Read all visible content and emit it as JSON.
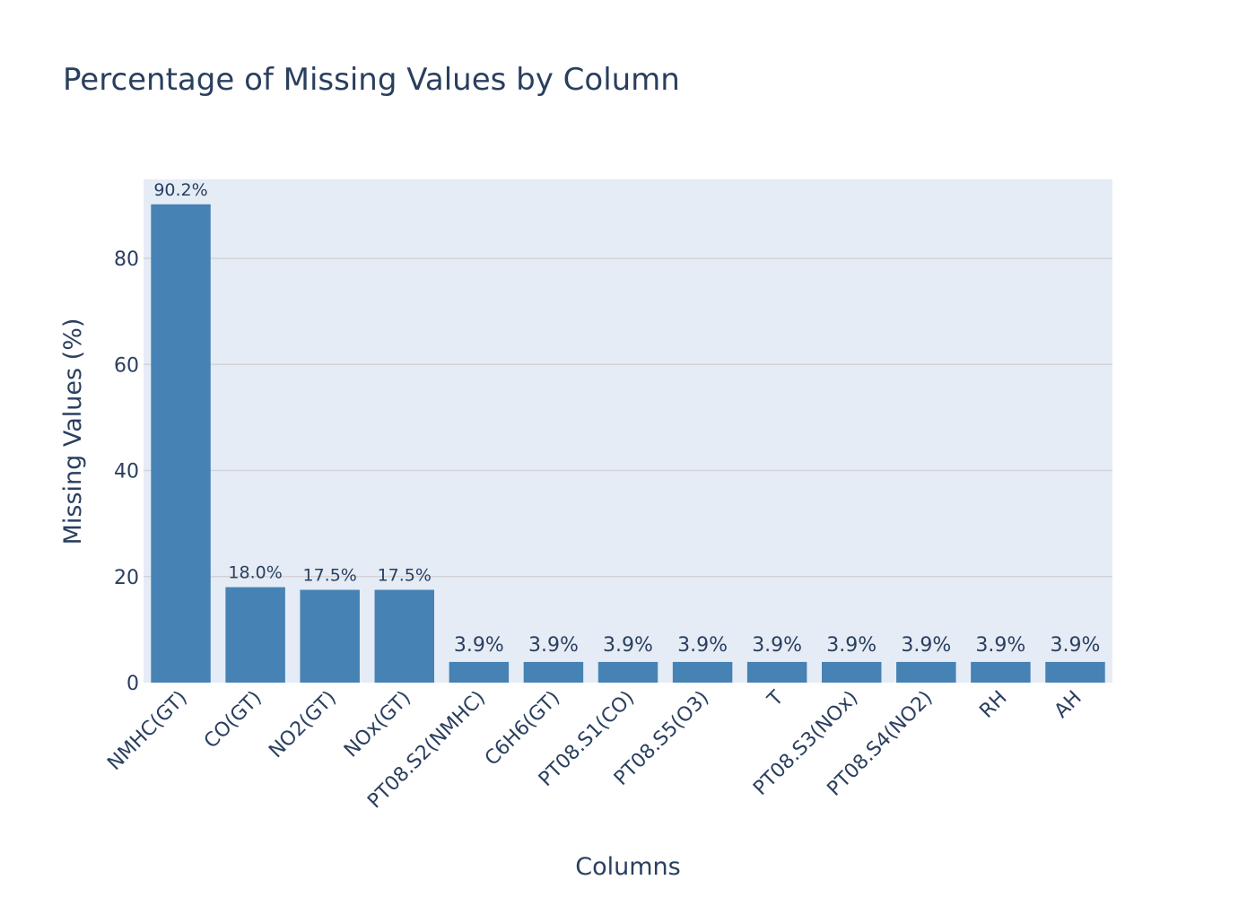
{
  "chart_data": {
    "type": "bar",
    "title": "Percentage of Missing Values by Column",
    "xlabel": "Columns",
    "ylabel": "Missing Values (%)",
    "categories": [
      "NMHC(GT)",
      "CO(GT)",
      "NO2(GT)",
      "NOx(GT)",
      "PT08.S2(NMHC)",
      "C6H6(GT)",
      "PT08.S1(CO)",
      "PT08.S5(O3)",
      "T",
      "PT08.S3(NOx)",
      "PT08.S4(NO2)",
      "RH",
      "AH"
    ],
    "values": [
      90.2,
      18.0,
      17.5,
      17.5,
      3.9,
      3.9,
      3.9,
      3.9,
      3.9,
      3.9,
      3.9,
      3.9,
      3.9
    ],
    "data_labels": [
      "90.2%",
      "18.0%",
      "17.5%",
      "17.5%",
      "3.9%",
      "3.9%",
      "3.9%",
      "3.9%",
      "3.9%",
      "3.9%",
      "3.9%",
      "3.9%",
      "3.9%"
    ],
    "y_ticks": [
      0,
      20,
      40,
      60,
      80
    ],
    "ylim": [
      0,
      94.9
    ],
    "grid": true,
    "bar_color": "#4682b4",
    "plot_background": "#e5ecf6"
  }
}
